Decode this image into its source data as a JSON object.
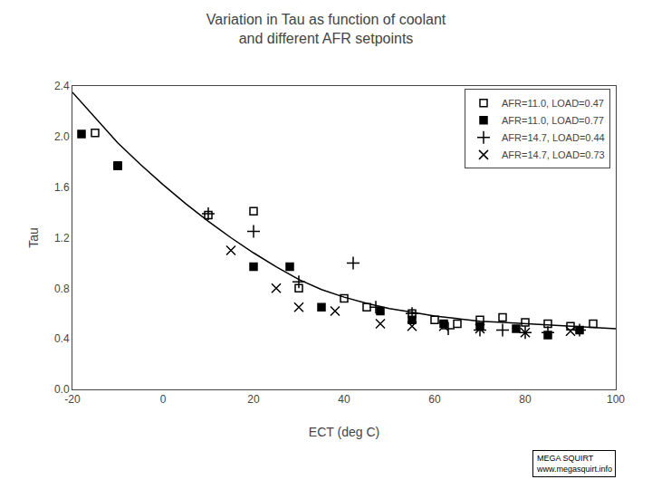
{
  "chart_data": {
    "type": "scatter",
    "title": "Variation in Tau as function of coolant\nand different AFR setpoints",
    "x_label": "ECT (deg C)",
    "y_label": "Tau",
    "xlim": [
      -20,
      100
    ],
    "ylim": [
      0,
      2.4
    ],
    "xticks": [
      -20,
      0,
      20,
      40,
      60,
      80,
      100
    ],
    "yticks": [
      {
        "value": 0,
        "label": "0.0"
      },
      0.4,
      0.8,
      1.2,
      1.6,
      {
        "value": 2,
        "label": "2.0"
      },
      2.4
    ],
    "grid": false,
    "legend": "upper right",
    "series": [
      {
        "type": "line",
        "color": "black",
        "line_style": "solid",
        "x": [
          -20,
          -15,
          -10,
          -5,
          0,
          5,
          10,
          15,
          20,
          25,
          30,
          35,
          40,
          45,
          50,
          55,
          60,
          65,
          70,
          75,
          80,
          85,
          90,
          95,
          100
        ],
        "values": [
          2.35,
          2.15,
          1.95,
          1.78,
          1.62,
          1.47,
          1.33,
          1.2,
          1.08,
          0.97,
          0.87,
          0.79,
          0.73,
          0.68,
          0.64,
          0.61,
          0.58,
          0.56,
          0.54,
          0.53,
          0.52,
          0.51,
          0.5,
          0.49,
          0.48
        ]
      },
      {
        "name": "AFR=11.0, LOAD=0.47",
        "color": "black",
        "marker": "square-open",
        "x": [
          -15,
          -10,
          10,
          20,
          30,
          40,
          45,
          55,
          60,
          65,
          70,
          75,
          80,
          85,
          90,
          95
        ],
        "values": [
          2.03,
          1.77,
          1.38,
          1.41,
          0.8,
          0.72,
          0.65,
          0.6,
          0.55,
          0.52,
          0.55,
          0.57,
          0.53,
          0.52,
          0.5,
          0.52
        ]
      },
      {
        "name": "AFR=11.0, LOAD=0.77",
        "color": "black",
        "marker": "square",
        "x": [
          -18,
          -10,
          20,
          28,
          35,
          48,
          55,
          62,
          70,
          78,
          85,
          92
        ],
        "values": [
          2.02,
          1.77,
          0.97,
          0.97,
          0.65,
          0.62,
          0.55,
          0.52,
          0.5,
          0.48,
          0.43,
          0.47
        ]
      },
      {
        "name": "AFR=14.7, LOAD=0.44",
        "color": "black",
        "marker": "cross-thin-open",
        "x": [
          10,
          20,
          30,
          42,
          47,
          55,
          63,
          70,
          75,
          80,
          85,
          92
        ],
        "values": [
          1.39,
          1.25,
          0.85,
          1.0,
          0.65,
          0.6,
          0.48,
          0.47,
          0.47,
          0.45,
          0.45,
          0.47
        ]
      },
      {
        "name": "AFR=14.7, LOAD=0.73",
        "color": "black",
        "marker": "x-thin-open",
        "x": [
          15,
          25,
          30,
          38,
          48,
          55,
          62,
          70,
          80,
          90
        ],
        "values": [
          1.1,
          0.8,
          0.65,
          0.62,
          0.52,
          0.5,
          0.5,
          0.48,
          0.45,
          0.46
        ]
      }
    ],
    "annotations": [
      {
        "text": "MEGA SQUIRT\nwww.megasquirt.info"
      }
    ]
  }
}
